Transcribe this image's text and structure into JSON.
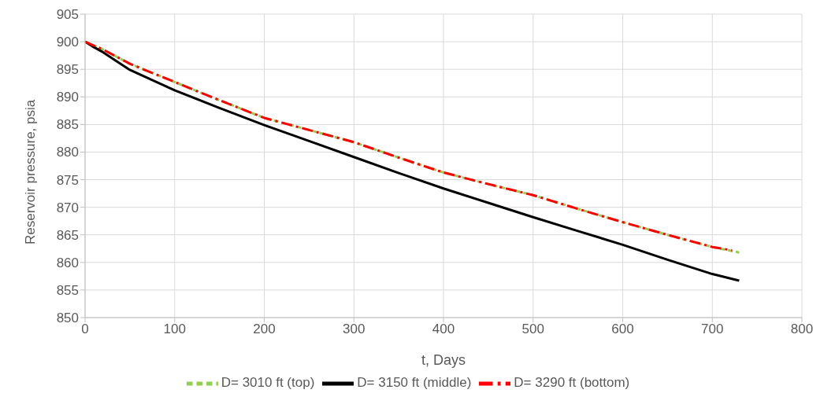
{
  "chart_data": {
    "type": "line",
    "xlabel": "t, Days",
    "ylabel": "Reservoir pressure, psia",
    "x": [
      0,
      10,
      20,
      50,
      100,
      150,
      200,
      250,
      300,
      350,
      400,
      450,
      500,
      550,
      600,
      650,
      700,
      730
    ],
    "series": [
      {
        "name": "D= 3010 ft (top)",
        "color": "#92d050",
        "line_style": "dashed",
        "values": [
          900,
          899.3,
          898.6,
          896.0,
          892.7,
          889.4,
          886.2,
          884.0,
          881.8,
          879.0,
          876.3,
          874.2,
          872.2,
          869.7,
          867.3,
          865.0,
          862.8,
          861.8
        ]
      },
      {
        "name": "D= 3150 ft (middle)",
        "color": "#000000",
        "line_style": "solid",
        "values": [
          900,
          899.0,
          898.1,
          894.9,
          891.2,
          888.0,
          884.9,
          882.0,
          879.1,
          876.2,
          873.4,
          870.8,
          868.2,
          865.7,
          863.2,
          860.5,
          857.9,
          856.7
        ]
      },
      {
        "name": "D= 3290 ft (bottom)",
        "color": "#ff0000",
        "line_style": "dashdot",
        "x": [
          0,
          10,
          20,
          50,
          100,
          150,
          200,
          250,
          300,
          350,
          400,
          450,
          500,
          550,
          600,
          650,
          700,
          722
        ],
        "values": [
          900,
          899.3,
          898.6,
          896.0,
          892.7,
          889.4,
          886.2,
          884.0,
          881.8,
          879.0,
          876.3,
          874.2,
          872.2,
          869.7,
          867.3,
          865.0,
          862.8,
          862.2
        ]
      }
    ],
    "xlim": [
      0,
      800
    ],
    "xticks": [
      0,
      100,
      200,
      300,
      400,
      500,
      600,
      700,
      800
    ],
    "ylim": [
      850,
      905
    ],
    "yticks": [
      850,
      855,
      860,
      865,
      870,
      875,
      880,
      885,
      890,
      895,
      900,
      905
    ],
    "grid": true,
    "legend": "bottom",
    "marker": "none"
  }
}
